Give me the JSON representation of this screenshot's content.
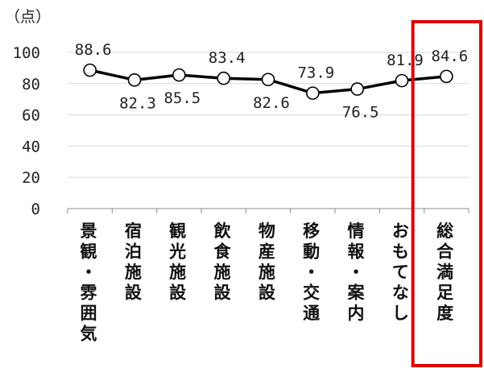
{
  "chart_data": {
    "type": "line",
    "unit_label": "（点）",
    "ylim": [
      0,
      100
    ],
    "yticks": [
      0,
      20,
      40,
      60,
      80,
      100
    ],
    "categories": [
      "景観・雰囲気",
      "宿泊施設",
      "観光施設",
      "飲食施設",
      "物産施設",
      "移動・交通",
      "情報・案内",
      "おもてなし",
      "総合満足度"
    ],
    "values": [
      88.6,
      82.3,
      85.5,
      83.4,
      82.6,
      73.9,
      76.5,
      81.9,
      84.6
    ],
    "data_labels": [
      "88.6",
      "82.3",
      "85.5",
      "83.4",
      "82.6",
      "73.9",
      "76.5",
      "81.9",
      "84.6"
    ],
    "highlight_category": "総合満足度",
    "grid": true,
    "colors": {
      "line": "#000000",
      "marker_fill": "#ffffff",
      "grid": "#d9d9d9",
      "highlight": "#e00000"
    }
  }
}
